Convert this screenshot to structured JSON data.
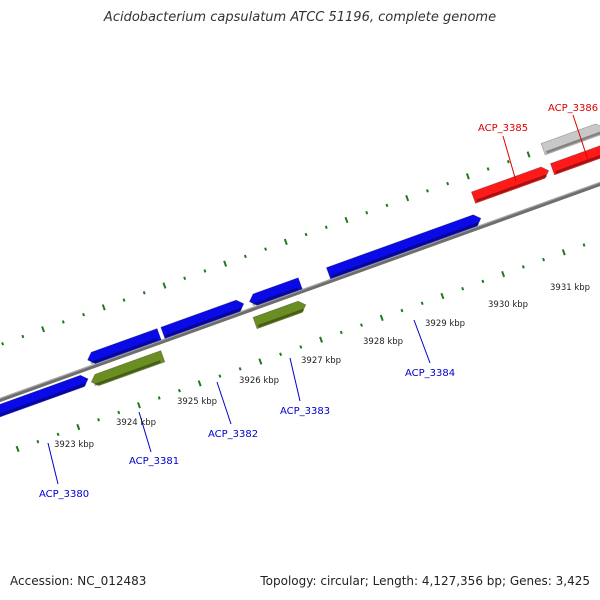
{
  "title": "Acidobacterium capsulatum ATCC 51196, complete genome",
  "accession": "Accession: NC_012483",
  "summary": "Topology: circular; Length: 4,127,356 bp; Genes: 3,425",
  "colors": {
    "forward_gene": "#0a0ae8",
    "reverse_gene": "#6b8e23",
    "rna_gene": "#ff1a1a",
    "pseudo_gene": "#c8c8c8",
    "backbone": "#808080",
    "ticks": "#1f7a1f",
    "blue_label": "#0000cc",
    "red_label": "#dd0000"
  },
  "kbp_labels": [
    "3923 kbp",
    "3924 kbp",
    "3925 kbp",
    "3926 kbp",
    "3927 kbp",
    "3928 kbp",
    "3929 kbp",
    "3930 kbp",
    "3931 kbp"
  ],
  "genes": [
    {
      "label": "ACP_3380",
      "strand": "forward",
      "color_key": "blue_label"
    },
    {
      "label": "ACP_3381",
      "strand": "reverse",
      "color_key": "blue_label"
    },
    {
      "label": "ACP_3382",
      "strand": "forward",
      "color_key": "blue_label"
    },
    {
      "label": "ACP_3383",
      "strand": "reverse",
      "color_key": "blue_label"
    },
    {
      "label": "ACP_3384",
      "strand": "forward",
      "color_key": "blue_label"
    },
    {
      "label": "ACP_3385",
      "strand": "rna",
      "color_key": "red_label"
    },
    {
      "label": "ACP_3386",
      "strand": "rna",
      "color_key": "red_label"
    }
  ]
}
